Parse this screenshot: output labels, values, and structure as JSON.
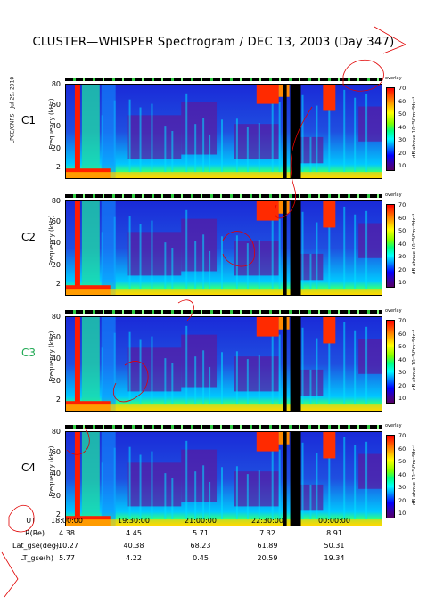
{
  "title": "CLUSTER—WHISPER Spectrogram / DEC 13, 2003 (Day 347)",
  "credit": "LPCE/CNRS - Jul 29, 2010",
  "y_axis_label": "Frequency (kHz)",
  "colorbar": {
    "ticks": [
      "70",
      "60",
      "50",
      "40",
      "30",
      "20",
      "10"
    ],
    "unit": "dB above 10⁻⁸V²m⁻²Hz⁻¹",
    "top_label": "overlay"
  },
  "panels": [
    {
      "name": "C1",
      "name_color": "#000000",
      "y_ticks": [
        "80",
        "60",
        "40",
        "20",
        "2"
      ]
    },
    {
      "name": "C2",
      "name_color": "#000000",
      "y_ticks": [
        "80",
        "60",
        "40",
        "20",
        "2"
      ]
    },
    {
      "name": "C3",
      "name_color": "#22aa55",
      "y_ticks": [
        "80",
        "60",
        "40",
        "20",
        "2"
      ]
    },
    {
      "name": "C4",
      "name_color": "#000000",
      "y_ticks": [
        "80",
        "60",
        "40",
        "20",
        "2"
      ]
    }
  ],
  "x_axis": {
    "rows": [
      {
        "label": "UT",
        "values": [
          "18:00:00",
          "19:30:00",
          "21:00:00",
          "22:30:00",
          "00:00:00"
        ]
      },
      {
        "label": "R(Re)",
        "values": [
          "4.38",
          "4.45",
          "5.71",
          "7.32",
          "8.91"
        ]
      },
      {
        "label": "Lat_gse(deg)",
        "values": [
          "-10.27",
          "40.38",
          "68.23",
          "61.89",
          "50.31"
        ]
      },
      {
        "label": "LT_gse(h)",
        "values": [
          "5.77",
          "4.22",
          "0.45",
          "20.59",
          "19.34"
        ]
      }
    ]
  },
  "chart_data": [
    {
      "type": "heatmap",
      "panel": "C1",
      "x_range": [
        "18:00:00",
        "00:00:00"
      ],
      "y_range_khz": [
        2,
        80
      ],
      "color_range_db": [
        10,
        70
      ]
    },
    {
      "type": "heatmap",
      "panel": "C2",
      "x_range": [
        "18:00:00",
        "00:00:00"
      ],
      "y_range_khz": [
        2,
        80
      ],
      "color_range_db": [
        10,
        70
      ]
    },
    {
      "type": "heatmap",
      "panel": "C3",
      "x_range": [
        "18:00:00",
        "00:00:00"
      ],
      "y_range_khz": [
        2,
        80
      ],
      "color_range_db": [
        10,
        70
      ]
    },
    {
      "type": "heatmap",
      "panel": "C4",
      "x_range": [
        "18:00:00",
        "00:00:00"
      ],
      "y_range_khz": [
        2,
        80
      ],
      "color_range_db": [
        10,
        70
      ]
    }
  ]
}
